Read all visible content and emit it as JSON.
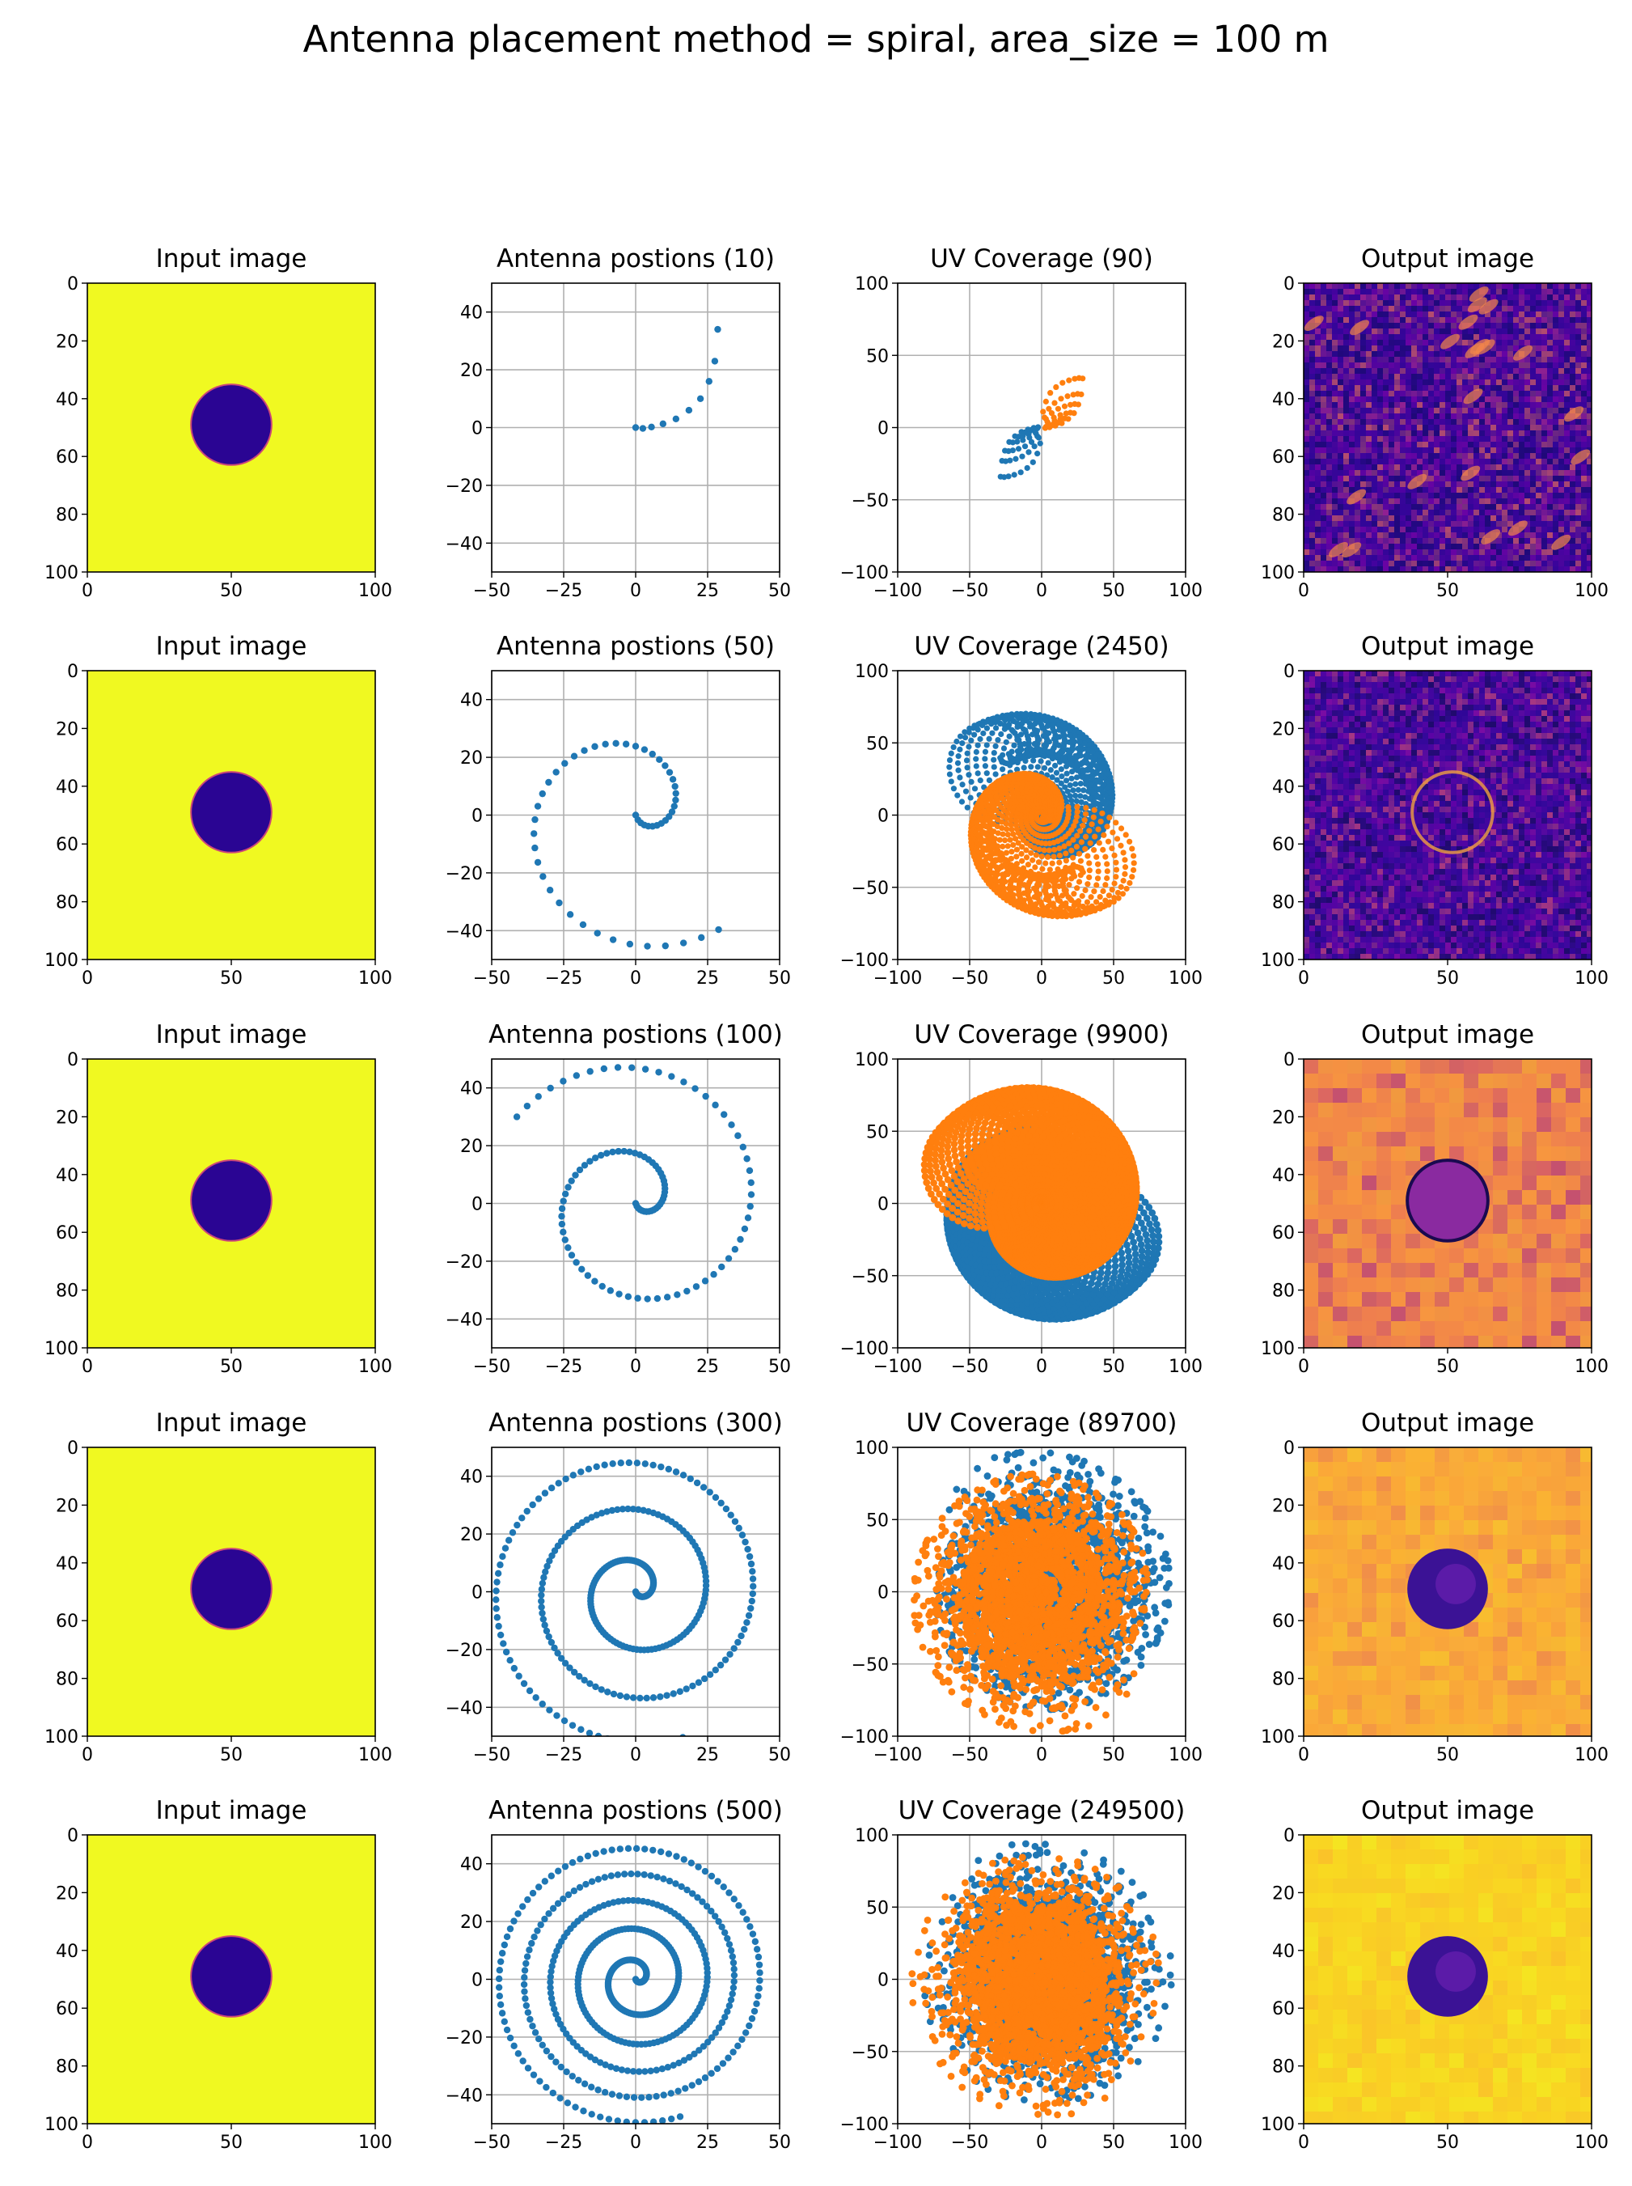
{
  "figure": {
    "suptitle": "Antenna placement method = spiral, area_size = 100 m",
    "colors": {
      "antenna": "#1f77b4",
      "uv_positive": "#1f77b4",
      "uv_negative": "#ff7f0e",
      "grid": "#b0b0b0",
      "image_background": "#f0f921",
      "image_disk": "#2a0593",
      "image_disk_edge": "#cc4778"
    },
    "colormap": "plasma"
  },
  "chart_data": [
    {
      "row": 1,
      "panels": [
        {
          "type": "heatmap",
          "title": "Input image",
          "xlim": [
            0,
            100
          ],
          "ylim": [
            100,
            0
          ],
          "xticks": [
            0,
            50,
            100
          ],
          "yticks": [
            0,
            20,
            40,
            60,
            80,
            100
          ],
          "disk": {
            "cx": 50,
            "cy": 49,
            "r": 14
          },
          "inside_value": "low",
          "outside_value": "high"
        },
        {
          "type": "scatter",
          "title": "Antenna postions (10)",
          "n": 10,
          "xlim": [
            -50,
            50
          ],
          "ylim": [
            -50,
            50
          ],
          "xticks": [
            -50,
            -25,
            0,
            25,
            50
          ],
          "yticks": [
            -40,
            -20,
            0,
            20,
            40
          ],
          "grid": true,
          "x": [
            0,
            2.5,
            5.5,
            9.5,
            14,
            18.5,
            22.5,
            25.5,
            27.5,
            28.5
          ],
          "y": [
            0,
            -0.3,
            0.2,
            1.3,
            3,
            6,
            10,
            16,
            23,
            34
          ]
        },
        {
          "type": "scatter",
          "title": "UV Coverage (90)",
          "n": 90,
          "xlim": [
            -100,
            100
          ],
          "ylim": [
            -100,
            100
          ],
          "xticks": [
            -100,
            -50,
            0,
            50,
            100
          ],
          "yticks": [
            -100,
            -50,
            0,
            50,
            100
          ],
          "grid": true,
          "series": [
            "uv",
            "-uv"
          ]
        },
        {
          "type": "heatmap",
          "title": "Output image",
          "xlim": [
            0,
            100
          ],
          "ylim": [
            100,
            0
          ],
          "xticks": [
            0,
            50,
            100
          ],
          "yticks": [
            0,
            20,
            40,
            60,
            80,
            100
          ],
          "appearance": "dark purple noisy stripes"
        }
      ]
    },
    {
      "row": 2,
      "panels": [
        {
          "type": "heatmap",
          "title": "Input image",
          "xlim": [
            0,
            100
          ],
          "ylim": [
            100,
            0
          ],
          "xticks": [
            0,
            50,
            100
          ],
          "yticks": [
            0,
            20,
            40,
            60,
            80,
            100
          ],
          "disk": {
            "cx": 50,
            "cy": 49,
            "r": 14
          }
        },
        {
          "type": "scatter",
          "title": "Antenna postions (50)",
          "n": 50,
          "xlim": [
            -50,
            50
          ],
          "ylim": [
            -50,
            50
          ],
          "xticks": [
            -50,
            -25,
            0,
            25,
            50
          ],
          "yticks": [
            -40,
            -20,
            0,
            20,
            40
          ],
          "grid": true,
          "spiral_max_radius": 49
        },
        {
          "type": "scatter",
          "title": "UV Coverage (2450)",
          "n": 2450,
          "xlim": [
            -100,
            100
          ],
          "ylim": [
            -100,
            100
          ],
          "xticks": [
            -100,
            -50,
            0,
            50,
            100
          ],
          "yticks": [
            -100,
            -50,
            0,
            50,
            100
          ],
          "grid": true,
          "series": [
            "uv",
            "-uv"
          ]
        },
        {
          "type": "heatmap",
          "title": "Output image",
          "xlim": [
            0,
            100
          ],
          "ylim": [
            100,
            0
          ],
          "xticks": [
            0,
            50,
            100
          ],
          "yticks": [
            0,
            20,
            40,
            60,
            80,
            100
          ],
          "appearance": "dark purple noise with faint ring"
        }
      ]
    },
    {
      "row": 3,
      "panels": [
        {
          "type": "heatmap",
          "title": "Input image",
          "xlim": [
            0,
            100
          ],
          "ylim": [
            100,
            0
          ],
          "xticks": [
            0,
            50,
            100
          ],
          "yticks": [
            0,
            20,
            40,
            60,
            80,
            100
          ],
          "disk": {
            "cx": 50,
            "cy": 49,
            "r": 14
          }
        },
        {
          "type": "scatter",
          "title": "Antenna postions (100)",
          "n": 100,
          "xlim": [
            -50,
            50
          ],
          "ylim": [
            -50,
            50
          ],
          "xticks": [
            -50,
            -25,
            0,
            25,
            50
          ],
          "yticks": [
            -40,
            -20,
            0,
            20,
            40
          ],
          "grid": true,
          "spiral_max_radius": 51
        },
        {
          "type": "scatter",
          "title": "UV Coverage (9900)",
          "n": 9900,
          "xlim": [
            -100,
            100
          ],
          "ylim": [
            -100,
            100
          ],
          "xticks": [
            -100,
            -50,
            0,
            50,
            100
          ],
          "yticks": [
            -100,
            -50,
            0,
            50,
            100
          ],
          "grid": true,
          "series": [
            "uv",
            "-uv"
          ]
        },
        {
          "type": "heatmap",
          "title": "Output image",
          "xlim": [
            0,
            100
          ],
          "ylim": [
            100,
            0
          ],
          "xticks": [
            0,
            50,
            100
          ],
          "yticks": [
            0,
            20,
            40,
            60,
            80,
            100
          ],
          "appearance": "orange/purple clouds with ring"
        }
      ]
    },
    {
      "row": 4,
      "panels": [
        {
          "type": "heatmap",
          "title": "Input image",
          "xlim": [
            0,
            100
          ],
          "ylim": [
            100,
            0
          ],
          "xticks": [
            0,
            50,
            100
          ],
          "yticks": [
            0,
            20,
            40,
            60,
            80,
            100
          ],
          "disk": {
            "cx": 50,
            "cy": 49,
            "r": 14
          }
        },
        {
          "type": "scatter",
          "title": "Antenna postions (300)",
          "n": 300,
          "xlim": [
            -50,
            50
          ],
          "ylim": [
            -50,
            50
          ],
          "xticks": [
            -50,
            -25,
            0,
            25,
            50
          ],
          "yticks": [
            -40,
            -20,
            0,
            20,
            40
          ],
          "grid": true,
          "spiral_max_radius": 53
        },
        {
          "type": "scatter",
          "title": "UV Coverage (89700)",
          "n": 89700,
          "xlim": [
            -100,
            100
          ],
          "ylim": [
            -100,
            100
          ],
          "xticks": [
            -100,
            -50,
            0,
            50,
            100
          ],
          "yticks": [
            -100,
            -50,
            0,
            50,
            100
          ],
          "grid": true,
          "series": [
            "uv",
            "-uv"
          ]
        },
        {
          "type": "heatmap",
          "title": "Output image",
          "xlim": [
            0,
            100
          ],
          "ylim": [
            100,
            0
          ],
          "xticks": [
            0,
            50,
            100
          ],
          "yticks": [
            0,
            20,
            40,
            60,
            80,
            100
          ],
          "appearance": "yellow-orange clouds with purple disk"
        }
      ]
    },
    {
      "row": 5,
      "panels": [
        {
          "type": "heatmap",
          "title": "Input image",
          "xlim": [
            0,
            100
          ],
          "ylim": [
            100,
            0
          ],
          "xticks": [
            0,
            50,
            100
          ],
          "yticks": [
            0,
            20,
            40,
            60,
            80,
            100
          ],
          "disk": {
            "cx": 50,
            "cy": 49,
            "r": 14
          }
        },
        {
          "type": "scatter",
          "title": "Antenna postions (500)",
          "n": 500,
          "xlim": [
            -50,
            50
          ],
          "ylim": [
            -50,
            50
          ],
          "xticks": [
            -50,
            -25,
            0,
            25,
            50
          ],
          "yticks": [
            -40,
            -20,
            0,
            20,
            40
          ],
          "grid": true,
          "spiral_max_radius": 50
        },
        {
          "type": "scatter",
          "title": "UV Coverage (249500)",
          "n": 249500,
          "xlim": [
            -100,
            100
          ],
          "ylim": [
            -100,
            100
          ],
          "xticks": [
            -100,
            -50,
            0,
            50,
            100
          ],
          "yticks": [
            -100,
            -50,
            0,
            50,
            100
          ],
          "grid": true,
          "series": [
            "uv",
            "-uv"
          ]
        },
        {
          "type": "heatmap",
          "title": "Output image",
          "xlim": [
            0,
            100
          ],
          "ylim": [
            100,
            0
          ],
          "xticks": [
            0,
            50,
            100
          ],
          "yticks": [
            0,
            20,
            40,
            60,
            80,
            100
          ],
          "appearance": "yellow with purple disk"
        }
      ]
    }
  ]
}
